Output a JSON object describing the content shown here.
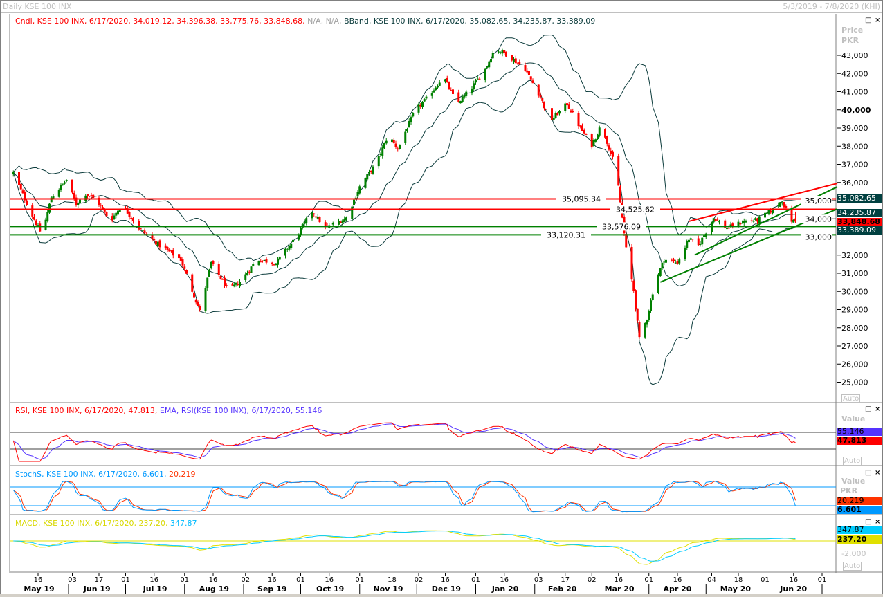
{
  "window": {
    "title": "Daily KSE 100 INX",
    "date_range": "5/3/2019 - 7/8/2020 (KHI)"
  },
  "price_pane": {
    "legend_candle": "Cndl, KSE 100 INX, 6/17/2020, 34,019.12, 34,396.38, 33,775.76, 33,848.68,",
    "legend_na": "N/A, N/A,",
    "legend_bband": "BBand, KSE 100 INX, 6/17/2020, 35,082.65, 34,235.87, 33,389.09",
    "axis_title": "Price",
    "axis_unit": "PKR",
    "auto_label": "Auto",
    "tags": [
      {
        "text": "35,082.65",
        "value": 35082.65,
        "bg": "#004040",
        "fg": "#ffffff"
      },
      {
        "text": "34,235.87",
        "value": 34235.87,
        "bg": "#004040",
        "fg": "#ffffff"
      },
      {
        "text": "33,848.68",
        "value": 33848.68,
        "bg": "#ff0000",
        "fg": "#000000"
      },
      {
        "text": "33,389.09",
        "value": 33389.09,
        "bg": "#004040",
        "fg": "#ffffff"
      }
    ]
  },
  "rsi_pane": {
    "legend_rsi": "RSI, KSE 100 INX, 6/17/2020, 47.813,",
    "legend_ema": "EMA, RSI(KSE 100 INX), 6/17/2020, 55.146",
    "axis_title": "Value",
    "auto_label": "Auto",
    "tags": [
      {
        "text": "55.146",
        "bg": "#5533ff",
        "fg": "#000000"
      },
      {
        "text": "47.813",
        "bg": "#ff0000",
        "fg": "#000000"
      }
    ]
  },
  "stoch_pane": {
    "legend_a": "StochS, KSE 100 INX, 6/17/2020, 6.601,",
    "legend_b": "20.219",
    "axis_title": "Value",
    "axis_unit": "PKR",
    "tags": [
      {
        "text": "20.219",
        "bg": "#ff3300",
        "fg": "#000000"
      },
      {
        "text": "6.601",
        "bg": "#0099ff",
        "fg": "#000000"
      }
    ]
  },
  "macd_pane": {
    "legend_a": "MACD, KSE 100 INX, 6/17/2020, 237.20,",
    "legend_b": "347.87",
    "axis_tick": "-2,000",
    "auto_label": "Auto",
    "tags": [
      {
        "text": "347.87",
        "bg": "#00ccff",
        "fg": "#000000"
      },
      {
        "text": "237.20",
        "bg": "#e0e000",
        "fg": "#000000"
      }
    ]
  },
  "chart_data": {
    "type": "candlestick",
    "instrument": "KSE 100 INX",
    "interval": "Daily",
    "ylim": [
      24500,
      44000
    ],
    "y_ticks": [
      43000,
      42000,
      41000,
      40000,
      39000,
      38000,
      37000,
      36000,
      35000,
      34000,
      33000,
      32000,
      31000,
      30000,
      29000,
      28000,
      27000,
      26000,
      25000
    ],
    "y_tick_labels": [
      "43,000",
      "42,000",
      "41,000",
      "40,000",
      "39,000",
      "38,000",
      "37,000",
      "36,000",
      "35,000",
      "34,000",
      "33,000",
      "32,000",
      "31,000",
      "30,000",
      "29,000",
      "28,000",
      "27,000",
      "26,000",
      "25,000"
    ],
    "approx_close_path": [
      [
        "2019-05-03",
        36520
      ],
      [
        "2019-05-11",
        34620
      ],
      [
        "2019-05-18",
        33100
      ],
      [
        "2019-05-23",
        35190
      ],
      [
        "2019-05-31",
        36140
      ],
      [
        "2019-06-05",
        34800
      ],
      [
        "2019-06-10",
        35380
      ],
      [
        "2019-06-16",
        35000
      ],
      [
        "2019-06-23",
        33860
      ],
      [
        "2019-06-29",
        34800
      ],
      [
        "2019-07-08",
        33480
      ],
      [
        "2019-07-19",
        32520
      ],
      [
        "2019-07-30",
        31760
      ],
      [
        "2019-08-09",
        28900
      ],
      [
        "2019-08-15",
        31570
      ],
      [
        "2019-08-24",
        30050
      ],
      [
        "2019-08-31",
        30620
      ],
      [
        "2019-09-08",
        31760
      ],
      [
        "2019-09-18",
        31570
      ],
      [
        "2019-09-28",
        32900
      ],
      [
        "2019-10-07",
        34430
      ],
      [
        "2019-10-14",
        33480
      ],
      [
        "2019-10-25",
        34050
      ],
      [
        "2019-11-01",
        35760
      ],
      [
        "2019-11-10",
        37100
      ],
      [
        "2019-11-16",
        38620
      ],
      [
        "2019-11-21",
        37860
      ],
      [
        "2019-11-30",
        39950
      ],
      [
        "2019-12-07",
        40710
      ],
      [
        "2019-12-15",
        41860
      ],
      [
        "2019-12-22",
        40330
      ],
      [
        "2019-12-29",
        41100
      ],
      [
        "2020-01-06",
        42240
      ],
      [
        "2020-01-11",
        43380
      ],
      [
        "2020-01-18",
        43000
      ],
      [
        "2020-01-27",
        42240
      ],
      [
        "2020-02-04",
        40710
      ],
      [
        "2020-02-09",
        39380
      ],
      [
        "2020-02-18",
        40330
      ],
      [
        "2020-02-25",
        39000
      ],
      [
        "2020-03-02",
        38050
      ],
      [
        "2020-03-07",
        39190
      ],
      [
        "2020-03-13",
        37290
      ],
      [
        "2020-03-16",
        35760
      ],
      [
        "2020-03-20",
        32330
      ],
      [
        "2020-03-24",
        30050
      ],
      [
        "2020-03-27",
        27380
      ],
      [
        "2020-03-31",
        28520
      ],
      [
        "2020-04-04",
        30430
      ],
      [
        "2020-04-09",
        31760
      ],
      [
        "2020-04-16",
        31570
      ],
      [
        "2020-04-22",
        32900
      ],
      [
        "2020-04-27",
        32520
      ],
      [
        "2020-05-05",
        34050
      ],
      [
        "2020-05-12",
        33480
      ],
      [
        "2020-05-21",
        33860
      ],
      [
        "2020-05-28",
        33930
      ],
      [
        "2020-06-04",
        34430
      ],
      [
        "2020-06-10",
        35000
      ],
      [
        "2020-06-14",
        33930
      ],
      [
        "2020-06-17",
        33848.68
      ]
    ],
    "last_bar": {
      "date": "6/17/2020",
      "open": 34019.12,
      "high": 34396.38,
      "low": 33775.76,
      "close": 33848.68
    },
    "bollinger": {
      "upper": 35082.65,
      "middle": 34235.87,
      "lower": 33389.09
    },
    "horizontal_lines": [
      {
        "label": "35,095.34",
        "value": 35095.34,
        "color": "#ff0000"
      },
      {
        "label": "34,525.62",
        "value": 34525.62,
        "color": "#ff0000"
      },
      {
        "label": "33,576.09",
        "value": 33576.09,
        "color": "#008000"
      },
      {
        "label": "33,120.31",
        "value": 33120.31,
        "color": "#008000"
      }
    ],
    "trend_lines": [
      {
        "color": "#ff0000",
        "from": [
          "2020-04-22",
          33860
        ],
        "to": [
          "2020-07-09",
          35950
        ]
      },
      {
        "color": "#008000",
        "from": [
          "2020-04-25",
          32000
        ],
        "to": [
          "2020-07-09",
          35760
        ]
      },
      {
        "color": "#008000",
        "from": [
          "2020-04-07",
          30510
        ],
        "to": [
          "2020-07-09",
          34540
        ]
      }
    ],
    "colors": {
      "up": "#008000",
      "down": "#ff0000",
      "bband": "#0b3b3b",
      "rsi": "#ff0000",
      "rsi_ema": "#5533ff",
      "stoch_k": "#0099ff",
      "stoch_d": "#ff3300",
      "macd": "#e0e000",
      "macd_signal": "#00ccff"
    },
    "rsi": {
      "value": 47.813,
      "ema": 55.146,
      "levels": [
        70,
        30
      ]
    },
    "stoch": {
      "k": 6.601,
      "d": 20.219,
      "levels": [
        80,
        20
      ]
    },
    "macd": {
      "macd": 237.2,
      "signal": 347.87
    },
    "x_ticks": [
      [
        "16",
        "2019-05-16"
      ],
      [
        "03",
        "2019-06-03"
      ],
      [
        "17",
        "2019-06-17"
      ],
      [
        "01",
        "2019-07-01"
      ],
      [
        "16",
        "2019-07-16"
      ],
      [
        "01",
        "2019-08-01"
      ],
      [
        "16",
        "2019-08-16"
      ],
      [
        "02",
        "2019-09-02"
      ],
      [
        "16",
        "2019-09-16"
      ],
      [
        "01",
        "2019-10-01"
      ],
      [
        "16",
        "2019-10-16"
      ],
      [
        "01",
        "2019-11-01"
      ],
      [
        "18",
        "2019-11-18"
      ],
      [
        "02",
        "2019-12-02"
      ],
      [
        "16",
        "2019-12-16"
      ],
      [
        "01",
        "2020-01-01"
      ],
      [
        "16",
        "2020-01-16"
      ],
      [
        "03",
        "2020-02-03"
      ],
      [
        "17",
        "2020-02-17"
      ],
      [
        "02",
        "2020-03-02"
      ],
      [
        "16",
        "2020-03-16"
      ],
      [
        "01",
        "2020-04-01"
      ],
      [
        "16",
        "2020-04-16"
      ],
      [
        "04",
        "2020-05-04"
      ],
      [
        "18",
        "2020-05-18"
      ],
      [
        "01",
        "2020-06-01"
      ],
      [
        "16",
        "2020-06-16"
      ],
      [
        "01",
        "2020-07-01"
      ]
    ],
    "x_months": [
      [
        "May 19",
        "2019-05"
      ],
      [
        "Jun 19",
        "2019-06"
      ],
      [
        "Jul 19",
        "2019-07"
      ],
      [
        "Aug 19",
        "2019-08"
      ],
      [
        "Sep 19",
        "2019-09"
      ],
      [
        "Oct 19",
        "2019-10"
      ],
      [
        "Nov 19",
        "2019-11"
      ],
      [
        "Dec 19",
        "2019-12"
      ],
      [
        "Jan 20",
        "2020-01"
      ],
      [
        "Feb 20",
        "2020-02"
      ],
      [
        "Mar 20",
        "2020-03"
      ],
      [
        "Apr 20",
        "2020-04"
      ],
      [
        "May 20",
        "2020-05"
      ],
      [
        "Jun 20",
        "2020-06"
      ]
    ]
  }
}
